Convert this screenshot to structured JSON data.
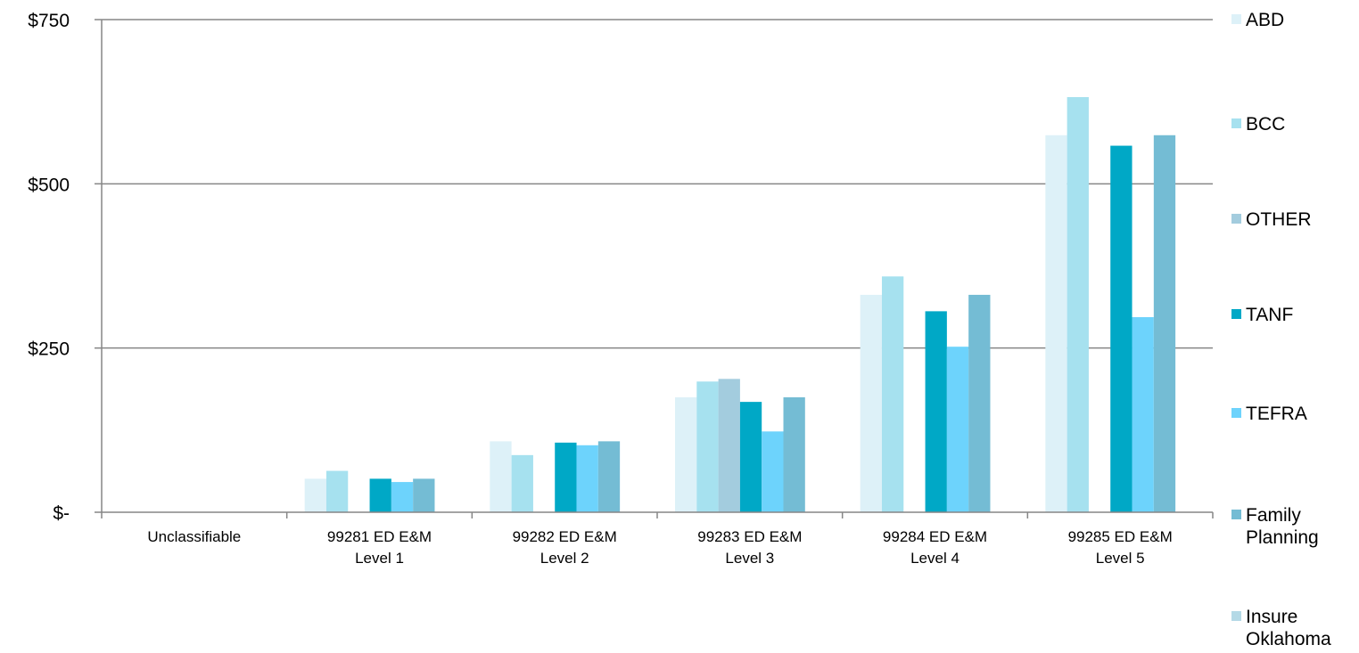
{
  "chart_data": {
    "type": "bar",
    "categories": [
      [
        "Unclassifiable"
      ],
      [
        "99281 ED E&M",
        "Level 1"
      ],
      [
        "99282 ED E&M",
        "Level 2"
      ],
      [
        "99283 ED E&M",
        "Level 3"
      ],
      [
        "99284 ED E&M",
        "Level 4"
      ],
      [
        "99285 ED E&M",
        "Level 5"
      ]
    ],
    "series": [
      {
        "name": "ABD",
        "color": "#DDF1F8",
        "values": [
          0,
          51,
          108,
          175,
          331,
          574
        ]
      },
      {
        "name": "BCC",
        "color": "#A6E1EF",
        "values": [
          0,
          63,
          87,
          199,
          359,
          632
        ]
      },
      {
        "name": "OTHER",
        "color": "#A3CCDE",
        "values": [
          0,
          0,
          0,
          203,
          0,
          0
        ]
      },
      {
        "name": "TANF",
        "color": "#00A8C6",
        "values": [
          0,
          51,
          106,
          168,
          306,
          558
        ]
      },
      {
        "name": "TEFRA",
        "color": "#6DD3FC",
        "values": [
          0,
          46,
          102,
          123,
          252,
          297
        ]
      },
      {
        "name": "Family Planning",
        "color": "#74BCD4",
        "values": [
          0,
          51,
          108,
          175,
          331,
          574
        ]
      },
      {
        "name": "Insure Oklahoma",
        "color": "#B4D9E6",
        "values": [
          0,
          0,
          0,
          0,
          0,
          0
        ]
      }
    ],
    "y_ticks": [
      {
        "value": 0,
        "label": "$-"
      },
      {
        "value": 250,
        "label": "$250"
      },
      {
        "value": 500,
        "label": "$500"
      },
      {
        "value": 750,
        "label": "$750"
      }
    ],
    "ylim": [
      0,
      750
    ],
    "grid": true,
    "legend_position": "right",
    "title": "",
    "xlabel": "",
    "ylabel": "",
    "colors": {
      "gridline": "#868686",
      "axis": "#868686"
    }
  }
}
